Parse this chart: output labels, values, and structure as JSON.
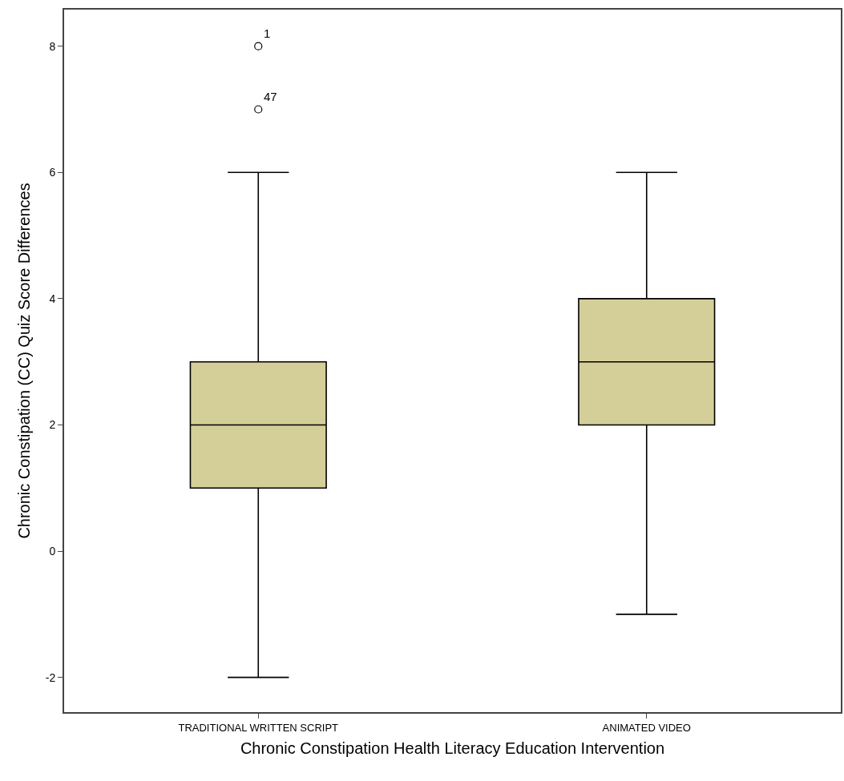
{
  "chart_data": {
    "type": "box",
    "xlabel": "Chronic Constipation Health Literacy Education Intervention",
    "ylabel": "Chronic Constipation (CC) Quiz Score Differences",
    "categories": [
      "TRADITIONAL WRITTEN SCRIPT",
      "ANIMATED VIDEO"
    ],
    "boxes": [
      {
        "low": -2,
        "q1": 1,
        "median": 2,
        "q3": 3,
        "high": 6,
        "outliers": [
          8,
          7
        ]
      },
      {
        "low": -1,
        "q1": 2,
        "median": 3,
        "q3": 4,
        "high": 6
      }
    ],
    "color": "#d4cf98",
    "ylim": [
      -2.55,
      8.58
    ],
    "yticks": [
      -2,
      0,
      2,
      4,
      6,
      8
    ],
    "annotations": [
      "1",
      "47"
    ],
    "marker": "circle"
  }
}
